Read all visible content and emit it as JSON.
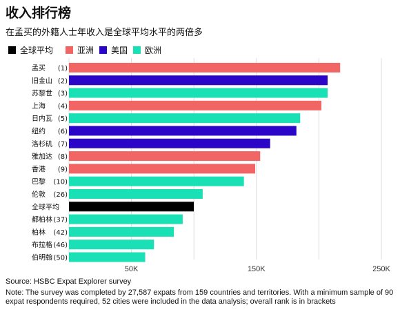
{
  "title": "收入排行榜",
  "subtitle": "在孟买的外籍人士年收入是全球平均水平的两倍多",
  "legend": [
    {
      "label": "全球平均",
      "color": "#000000"
    },
    {
      "label": "亚洲",
      "color": "#f26565"
    },
    {
      "label": "美国",
      "color": "#2b06c8"
    },
    {
      "label": "欧洲",
      "color": "#19e0b5"
    }
  ],
  "source": "Source: HSBC Expat Explorer survey",
  "note": "Note: The survey was completed by 27,587 expats from 159 countries and territories. With a minimum sample of 90 expat respondents required, 52 cities were included in the data analysis; overall rank is in brackets",
  "chart_data": {
    "type": "bar",
    "orientation": "horizontal",
    "categories": [
      "孟买",
      "旧金山",
      "苏黎世",
      "上海",
      "日内瓦",
      "纽约",
      "洛杉矶",
      "雅加达",
      "香港",
      "巴黎",
      "伦敦",
      "全球平均",
      "都柏林",
      "柏林",
      "布拉格",
      "伯明翰"
    ],
    "ranks": [
      "(1)",
      "(2)",
      "(3)",
      "(4)",
      "(5)",
      "(6)",
      "(7)",
      "(8)",
      "(9)",
      "(10)",
      "(26)",
      "",
      "(37)",
      "(42)",
      "(46)",
      "(50)"
    ],
    "regions": [
      "亚洲",
      "美国",
      "欧洲",
      "亚洲",
      "欧洲",
      "美国",
      "美国",
      "亚洲",
      "亚洲",
      "欧洲",
      "欧洲",
      "全球平均",
      "欧洲",
      "欧洲",
      "欧洲",
      "欧洲"
    ],
    "values": [
      217000,
      207000,
      207000,
      202000,
      185000,
      182000,
      161000,
      153000,
      149000,
      140000,
      107000,
      99900,
      91000,
      84000,
      68000,
      61000
    ],
    "xlim": [
      0,
      250000
    ],
    "xticks": [
      50000,
      150000,
      250000
    ],
    "xtick_labels": [
      "50K",
      "150K",
      "250K"
    ],
    "grid": true
  }
}
